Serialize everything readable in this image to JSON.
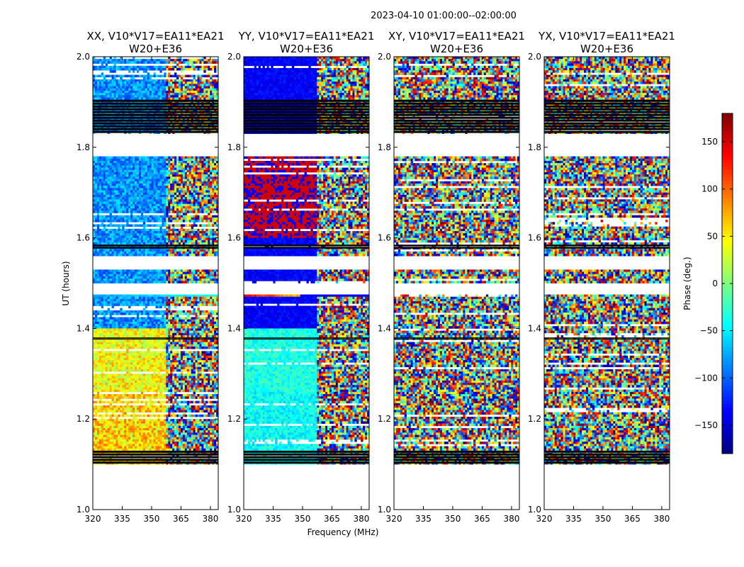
{
  "figure": {
    "suptitle": "2023-04-10  01:00:00--02:00:00",
    "xlabel": "Frequency (MHz)",
    "ylabel": "UT (hours)",
    "colorbar_label": "Phase (deg.)"
  },
  "chart_data": [
    {
      "type": "heatmap",
      "title": "XX, V10*V17=EA11*EA21\nW20+E36",
      "xlim": [
        320,
        384
      ],
      "ylim": [
        1.0,
        2.0
      ],
      "xticks": [
        320,
        335,
        350,
        365,
        380
      ],
      "yticks": [
        1.0,
        1.2,
        1.4,
        1.6,
        1.8,
        2.0
      ],
      "pattern": "xx"
    },
    {
      "type": "heatmap",
      "title": "YY, V10*V17=EA11*EA21\nW20+E36",
      "xlim": [
        320,
        384
      ],
      "ylim": [
        1.0,
        2.0
      ],
      "xticks": [
        320,
        335,
        350,
        365,
        380
      ],
      "yticks": [
        1.0,
        1.2,
        1.4,
        1.6,
        1.8,
        2.0
      ],
      "pattern": "yy"
    },
    {
      "type": "heatmap",
      "title": "XY, V10*V17=EA11*EA21\nW20+E36",
      "xlim": [
        320,
        384
      ],
      "ylim": [
        1.0,
        2.0
      ],
      "xticks": [
        320,
        335,
        350,
        365,
        380
      ],
      "yticks": [
        1.0,
        1.2,
        1.4,
        1.6,
        1.8,
        2.0
      ],
      "pattern": "noise"
    },
    {
      "type": "heatmap",
      "title": "YX, V10*V17=EA11*EA21\nW20+E36",
      "xlim": [
        320,
        384
      ],
      "ylim": [
        1.0,
        2.0
      ],
      "xticks": [
        320,
        335,
        350,
        365,
        380
      ],
      "yticks": [
        1.0,
        1.2,
        1.4,
        1.6,
        1.8,
        2.0
      ],
      "pattern": "noise"
    }
  ],
  "colorbar": {
    "range": [
      -180,
      180
    ],
    "ticks": [
      -150,
      -100,
      -50,
      0,
      50,
      100,
      150
    ],
    "colormap": "jet",
    "label": "Phase (deg.)"
  },
  "flagged_time_ranges": [
    [
      1.0,
      1.1
    ],
    [
      1.475,
      1.5
    ],
    [
      1.53,
      1.56
    ],
    [
      1.78,
      1.83
    ]
  ],
  "no_data_band_ranges": [
    [
      1.1,
      1.13
    ],
    [
      1.375,
      1.38
    ],
    [
      1.575,
      1.585
    ],
    [
      1.83,
      1.905
    ]
  ],
  "colors": {
    "flag_band": "#000000",
    "empty": "#ffffff"
  }
}
